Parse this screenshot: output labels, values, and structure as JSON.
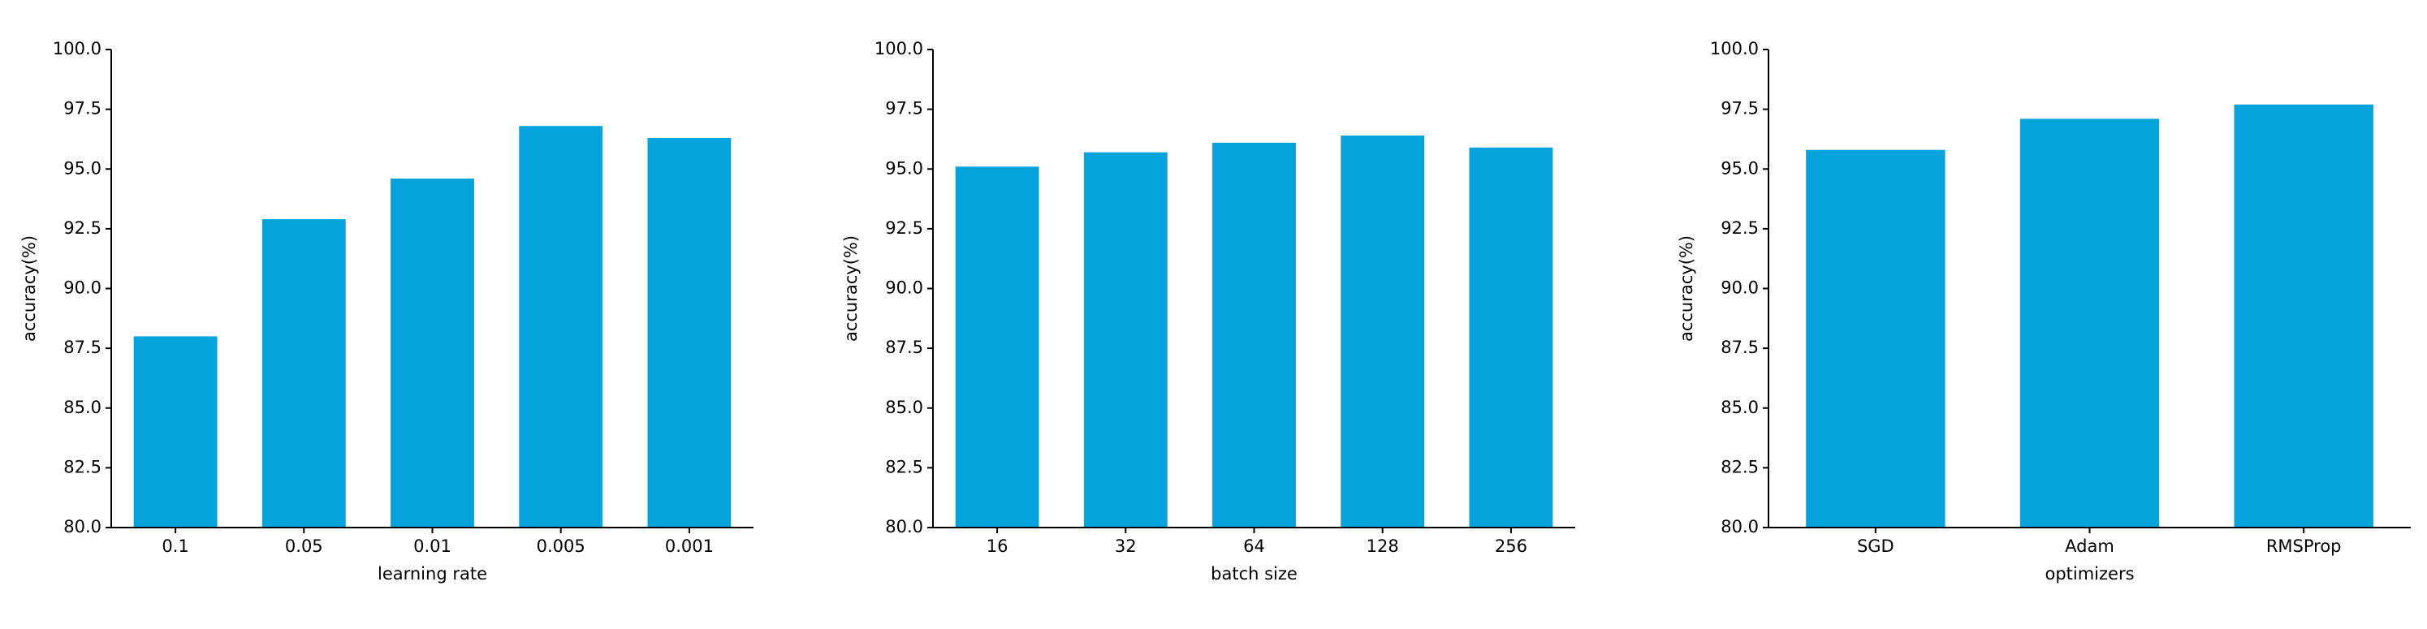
{
  "chart_data": [
    {
      "type": "bar",
      "xlabel": "learning rate",
      "ylabel": "accuracy(%)",
      "color": "#05a3db",
      "categories": [
        "0.1",
        "0.05",
        "0.01",
        "0.005",
        "0.001"
      ],
      "values": [
        88.0,
        92.9,
        94.6,
        96.8,
        96.3
      ],
      "ylim": [
        80,
        100
      ],
      "yticks": [
        {
          "value": 80,
          "label": "80.0"
        },
        {
          "value": 82.5,
          "label": "82.5"
        },
        {
          "value": 85,
          "label": "85.0"
        },
        {
          "value": 87.5,
          "label": "87.5"
        },
        {
          "value": 90,
          "label": "90.0"
        },
        {
          "value": 92.5,
          "label": "92.5"
        },
        {
          "value": 95,
          "label": "95.0"
        },
        {
          "value": 97.5,
          "label": "97.5"
        },
        {
          "value": 100,
          "label": "100.0"
        }
      ]
    },
    {
      "type": "bar",
      "xlabel": "batch size",
      "ylabel": "accuracy(%)",
      "color": "#05a3db",
      "categories": [
        "16",
        "32",
        "64",
        "128",
        "256"
      ],
      "values": [
        95.1,
        95.7,
        96.1,
        96.4,
        95.9
      ],
      "ylim": [
        80,
        100
      ],
      "yticks": [
        {
          "value": 80,
          "label": "80.0"
        },
        {
          "value": 82.5,
          "label": "82.5"
        },
        {
          "value": 85,
          "label": "85.0"
        },
        {
          "value": 87.5,
          "label": "87.5"
        },
        {
          "value": 90,
          "label": "90.0"
        },
        {
          "value": 92.5,
          "label": "92.5"
        },
        {
          "value": 95,
          "label": "95.0"
        },
        {
          "value": 97.5,
          "label": "97.5"
        },
        {
          "value": 100,
          "label": "100.0"
        }
      ]
    },
    {
      "type": "bar",
      "xlabel": "optimizers",
      "ylabel": "accuracy(%)",
      "color": "#05a3db",
      "categories": [
        "SGD",
        "Adam",
        "RMSProp"
      ],
      "values": [
        95.8,
        97.1,
        97.7
      ],
      "ylim": [
        80,
        100
      ],
      "yticks": [
        {
          "value": 80,
          "label": "80.0"
        },
        {
          "value": 82.5,
          "label": "82.5"
        },
        {
          "value": 85,
          "label": "85.0"
        },
        {
          "value": 87.5,
          "label": "87.5"
        },
        {
          "value": 90,
          "label": "90.0"
        },
        {
          "value": 92.5,
          "label": "92.5"
        },
        {
          "value": 95,
          "label": "95.0"
        },
        {
          "value": 97.5,
          "label": "97.5"
        },
        {
          "value": 100,
          "label": "100.0"
        }
      ]
    }
  ]
}
